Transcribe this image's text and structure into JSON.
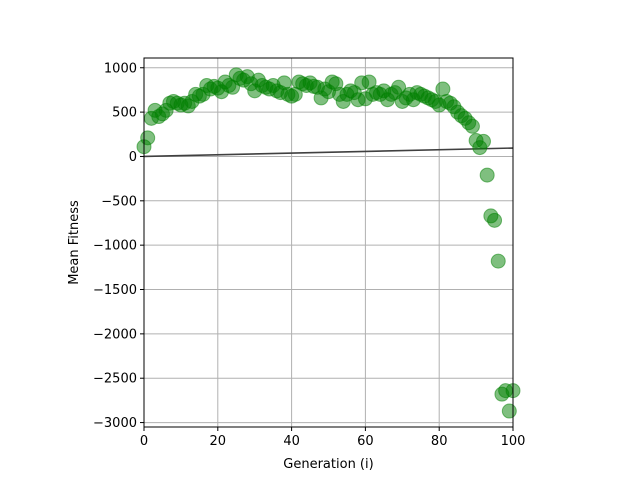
{
  "chart_data": {
    "type": "scatter",
    "title": "",
    "xlabel": "Generation (i)",
    "ylabel": "Mean Fitness",
    "xlim": [
      0,
      100
    ],
    "ylim": [
      -3050,
      1110
    ],
    "xticks": [
      0,
      20,
      40,
      60,
      80,
      100
    ],
    "yticks": [
      -3000,
      -2500,
      -2000,
      -1500,
      -1000,
      -500,
      0,
      500,
      1000
    ],
    "ytick_labels": [
      "−3000",
      "−2500",
      "−2000",
      "−1500",
      "−1000",
      "−500",
      "0",
      "500",
      "1000"
    ],
    "grid": true,
    "marker_color": "#008000",
    "line_color": "#404040",
    "series": [
      {
        "kind": "scatter",
        "x": [
          0,
          1,
          2,
          3,
          4,
          5,
          6,
          7,
          8,
          9,
          10,
          11,
          12,
          13,
          14,
          15,
          16,
          17,
          18,
          19,
          20,
          21,
          22,
          23,
          24,
          25,
          26,
          27,
          28,
          29,
          30,
          31,
          32,
          33,
          34,
          35,
          36,
          37,
          38,
          39,
          40,
          41,
          42,
          43,
          44,
          45,
          46,
          47,
          48,
          49,
          50,
          51,
          52,
          53,
          54,
          55,
          56,
          57,
          58,
          59,
          60,
          61,
          62,
          63,
          64,
          65,
          66,
          67,
          68,
          69,
          70,
          71,
          72,
          73,
          74,
          75,
          76,
          77,
          78,
          79,
          80,
          81,
          82,
          83,
          84,
          85,
          86,
          87,
          88,
          89,
          90,
          91,
          92,
          93,
          94,
          95,
          96,
          97,
          98,
          99,
          100
        ],
        "y": [
          110,
          210,
          430,
          520,
          450,
          480,
          520,
          600,
          620,
          600,
          580,
          600,
          570,
          620,
          700,
          680,
          700,
          800,
          760,
          790,
          770,
          730,
          840,
          800,
          780,
          920,
          880,
          860,
          900,
          820,
          740,
          860,
          800,
          780,
          760,
          800,
          740,
          720,
          830,
          700,
          680,
          700,
          840,
          820,
          800,
          830,
          790,
          780,
          660,
          760,
          730,
          840,
          820,
          700,
          620,
          700,
          740,
          720,
          640,
          830,
          650,
          840,
          700,
          720,
          700,
          740,
          640,
          700,
          720,
          780,
          620,
          660,
          700,
          640,
          720,
          700,
          680,
          660,
          640,
          620,
          580,
          760,
          620,
          600,
          560,
          500,
          460,
          430,
          380,
          340,
          180,
          100,
          170,
          -210,
          -670,
          -720,
          -1180,
          -2680,
          -2640,
          -2870,
          -2640
        ]
      },
      {
        "kind": "line",
        "x": [
          0,
          100
        ],
        "y": [
          0,
          95
        ]
      }
    ]
  }
}
